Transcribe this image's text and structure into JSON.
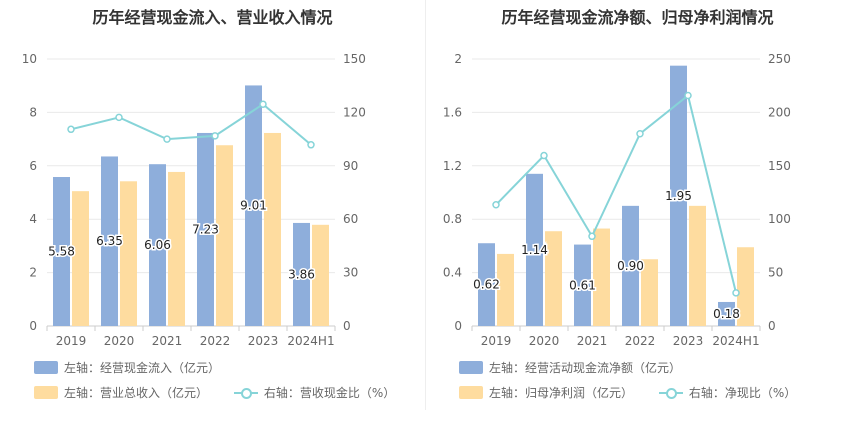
{
  "chart_data": [
    {
      "type": "bar",
      "title": "历年经营现金流入、营业收入情况",
      "categories": [
        "2019",
        "2020",
        "2021",
        "2022",
        "2023",
        "2024H1"
      ],
      "left_axis": {
        "ylim": [
          0,
          10
        ],
        "ticks": [
          "0",
          "2",
          "4",
          "6",
          "8",
          "10"
        ]
      },
      "right_axis": {
        "ylim": [
          0,
          150
        ],
        "ticks": [
          "0",
          "30",
          "60",
          "90",
          "120",
          "150"
        ]
      },
      "series": [
        {
          "name": "左轴：经营现金流入（亿元）",
          "axis": "left",
          "kind": "bar",
          "color": "#8eaedb",
          "values": [
            5.58,
            6.35,
            6.06,
            7.23,
            9.01,
            3.86
          ],
          "labels": [
            "5.58",
            "6.35",
            "6.06",
            "7.23",
            "9.01",
            "3.86"
          ]
        },
        {
          "name": "左轴：营业总收入（亿元）",
          "axis": "left",
          "kind": "bar",
          "color": "#fedc9f",
          "values": [
            5.05,
            5.42,
            5.77,
            6.77,
            7.23,
            3.79
          ]
        },
        {
          "name": "右轴：营收现金比（%）",
          "axis": "right",
          "kind": "line",
          "color": "#86d4d8",
          "values": [
            110.5,
            117.2,
            105.0,
            106.8,
            124.6,
            101.8
          ]
        }
      ]
    },
    {
      "type": "bar",
      "title": "历年经营现金流净额、归母净利润情况",
      "categories": [
        "2019",
        "2020",
        "2021",
        "2022",
        "2023",
        "2024H1"
      ],
      "left_axis": {
        "ylim": [
          0,
          2
        ],
        "ticks": [
          "0",
          "0.4",
          "0.8",
          "1.2",
          "1.6",
          "2"
        ]
      },
      "right_axis": {
        "ylim": [
          0,
          250
        ],
        "ticks": [
          "0",
          "50",
          "100",
          "150",
          "200",
          "250"
        ]
      },
      "series": [
        {
          "name": "左轴：经营活动现金流净额（亿元）",
          "axis": "left",
          "kind": "bar",
          "color": "#8eaedb",
          "values": [
            0.62,
            1.14,
            0.61,
            0.9,
            1.95,
            0.18
          ],
          "labels": [
            "0.62",
            "1.14",
            "0.61",
            "0.90",
            "1.95",
            "0.18"
          ]
        },
        {
          "name": "左轴：归母净利润（亿元）",
          "axis": "left",
          "kind": "bar",
          "color": "#fedc9f",
          "values": [
            0.54,
            0.71,
            0.73,
            0.5,
            0.9,
            0.59
          ]
        },
        {
          "name": "右轴：净现比（%）",
          "axis": "right",
          "kind": "line",
          "color": "#86d4d8",
          "values": [
            113.5,
            159.6,
            84.0,
            180.0,
            215.8,
            31.0
          ]
        }
      ]
    }
  ]
}
